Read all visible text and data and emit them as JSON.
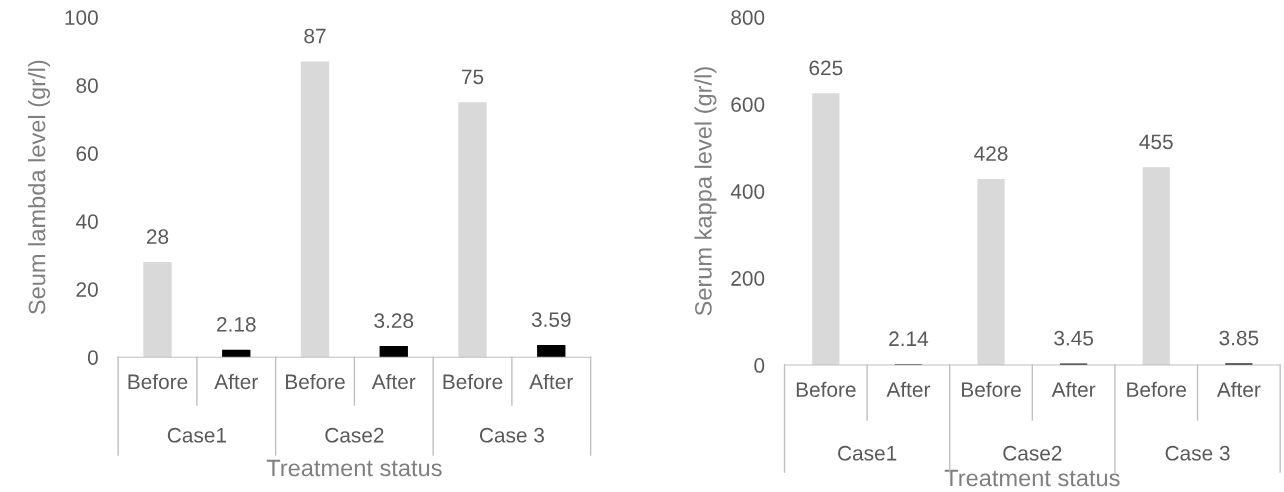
{
  "chart_data": [
    {
      "type": "bar",
      "xlabel": "Treatment status",
      "ylabel": "Seum lambda level (gr/l)",
      "categories": [
        "Before",
        "After",
        "Before",
        "After",
        "Before",
        "After"
      ],
      "values": [
        28,
        2.18,
        87,
        3.28,
        75,
        3.59
      ],
      "value_labels": [
        "28",
        "2.18",
        "87",
        "3.28",
        "75",
        "3.59"
      ],
      "colors": [
        "#d9d9d9",
        "#000000",
        "#d9d9d9",
        "#000000",
        "#d9d9d9",
        "#000000"
      ],
      "annotations": [
        "Case1",
        "Case2",
        "Case 3"
      ],
      "ylim": [
        0,
        100
      ],
      "yticks": [
        0,
        20,
        40,
        60,
        80,
        100
      ],
      "grid": false
    },
    {
      "type": "bar",
      "xlabel": "Treatment status",
      "ylabel": "Serum kappa level (gr/l)",
      "categories": [
        "Before",
        "After",
        "Before",
        "After",
        "Before",
        "After"
      ],
      "values": [
        625,
        2.14,
        428,
        3.45,
        455,
        3.85
      ],
      "value_labels": [
        "625",
        "2.14",
        "428",
        "3.45",
        "455",
        "3.85"
      ],
      "colors": [
        "#d9d9d9",
        "#000000",
        "#d9d9d9",
        "#000000",
        "#d9d9d9",
        "#000000"
      ],
      "annotations": [
        "Case1",
        "Case2",
        "Case 3"
      ],
      "ylim": [
        0,
        800
      ],
      "yticks": [
        0,
        200,
        400,
        600,
        800
      ],
      "grid": false
    }
  ]
}
